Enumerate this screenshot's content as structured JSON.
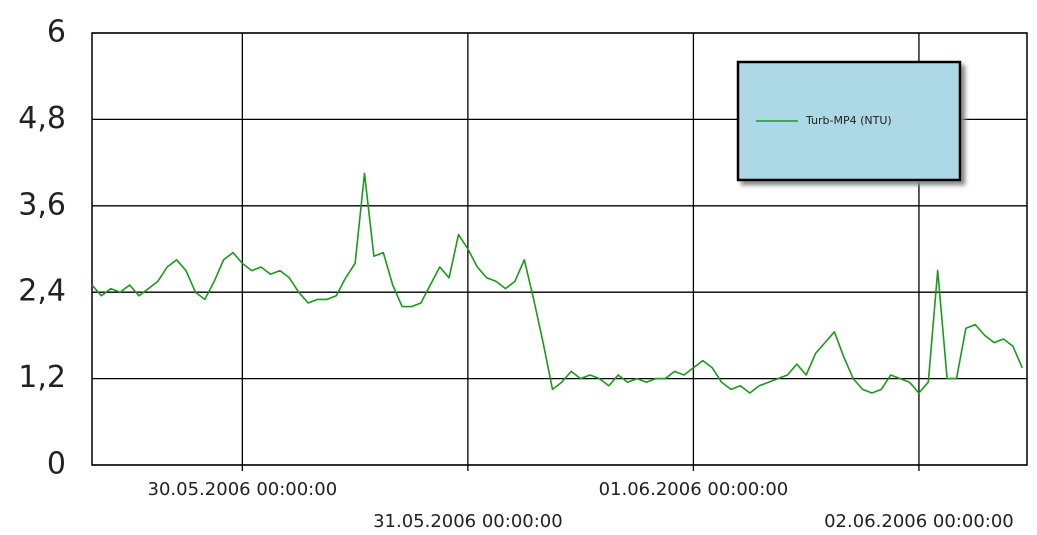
{
  "chart_data": {
    "type": "line",
    "x": [
      "29.05.2006 08:00:00",
      "29.05.2006 09:00:00",
      "29.05.2006 10:00:00",
      "29.05.2006 11:00:00",
      "29.05.2006 12:00:00",
      "29.05.2006 13:00:00",
      "29.05.2006 14:00:00",
      "29.05.2006 15:00:00",
      "29.05.2006 16:00:00",
      "29.05.2006 17:00:00",
      "29.05.2006 18:00:00",
      "29.05.2006 19:00:00",
      "29.05.2006 20:00:00",
      "29.05.2006 21:00:00",
      "29.05.2006 22:00:00",
      "29.05.2006 23:00:00",
      "30.05.2006 00:00:00",
      "30.05.2006 01:00:00",
      "30.05.2006 02:00:00",
      "30.05.2006 03:00:00",
      "30.05.2006 04:00:00",
      "30.05.2006 05:00:00",
      "30.05.2006 06:00:00",
      "30.05.2006 07:00:00",
      "30.05.2006 08:00:00",
      "30.05.2006 09:00:00",
      "30.05.2006 10:00:00",
      "30.05.2006 11:00:00",
      "30.05.2006 12:00:00",
      "30.05.2006 13:00:00",
      "30.05.2006 14:00:00",
      "30.05.2006 15:00:00",
      "30.05.2006 16:00:00",
      "30.05.2006 17:00:00",
      "30.05.2006 18:00:00",
      "30.05.2006 19:00:00",
      "30.05.2006 20:00:00",
      "30.05.2006 21:00:00",
      "30.05.2006 22:00:00",
      "30.05.2006 23:00:00",
      "31.05.2006 00:00:00",
      "31.05.2006 01:00:00",
      "31.05.2006 02:00:00",
      "31.05.2006 03:00:00",
      "31.05.2006 04:00:00",
      "31.05.2006 05:00:00",
      "31.05.2006 06:00:00",
      "31.05.2006 07:00:00",
      "31.05.2006 08:00:00",
      "31.05.2006 09:00:00",
      "31.05.2006 10:00:00",
      "31.05.2006 11:00:00",
      "31.05.2006 12:00:00",
      "31.05.2006 13:00:00",
      "31.05.2006 14:00:00",
      "31.05.2006 15:00:00",
      "31.05.2006 16:00:00",
      "31.05.2006 17:00:00",
      "31.05.2006 18:00:00",
      "31.05.2006 19:00:00",
      "31.05.2006 20:00:00",
      "31.05.2006 21:00:00",
      "31.05.2006 22:00:00",
      "31.05.2006 23:00:00",
      "01.06.2006 00:00:00",
      "01.06.2006 01:00:00",
      "01.06.2006 02:00:00",
      "01.06.2006 03:00:00",
      "01.06.2006 04:00:00",
      "01.06.2006 05:00:00",
      "01.06.2006 06:00:00",
      "01.06.2006 07:00:00",
      "01.06.2006 08:00:00",
      "01.06.2006 09:00:00",
      "01.06.2006 10:00:00",
      "01.06.2006 11:00:00",
      "01.06.2006 12:00:00",
      "01.06.2006 13:00:00",
      "01.06.2006 14:00:00",
      "01.06.2006 15:00:00",
      "01.06.2006 16:00:00",
      "01.06.2006 17:00:00",
      "01.06.2006 18:00:00",
      "01.06.2006 19:00:00",
      "01.06.2006 20:00:00",
      "01.06.2006 21:00:00",
      "01.06.2006 22:00:00",
      "01.06.2006 23:00:00",
      "02.06.2006 00:00:00",
      "02.06.2006 01:00:00",
      "02.06.2006 02:00:00",
      "02.06.2006 03:00:00",
      "02.06.2006 04:00:00",
      "02.06.2006 05:00:00",
      "02.06.2006 06:00:00",
      "02.06.2006 07:00:00",
      "02.06.2006 08:00:00",
      "02.06.2006 09:00:00",
      "02.06.2006 10:00:00",
      "02.06.2006 11:00:00"
    ],
    "series": [
      {
        "name": "Turb-MP4 (NTU)",
        "color": "#1a9a1a",
        "values": [
          2.5,
          2.35,
          2.45,
          2.4,
          2.5,
          2.35,
          2.45,
          2.55,
          2.75,
          2.85,
          2.7,
          2.4,
          2.3,
          2.55,
          2.85,
          2.95,
          2.8,
          2.7,
          2.75,
          2.65,
          2.7,
          2.6,
          2.4,
          2.25,
          2.3,
          2.3,
          2.35,
          2.6,
          2.8,
          4.05,
          2.9,
          2.95,
          2.5,
          2.2,
          2.2,
          2.25,
          2.5,
          2.75,
          2.6,
          3.2,
          3.0,
          2.75,
          2.6,
          2.55,
          2.45,
          2.55,
          2.85,
          2.3,
          1.7,
          1.05,
          1.15,
          1.3,
          1.2,
          1.25,
          1.2,
          1.1,
          1.25,
          1.15,
          1.2,
          1.15,
          1.2,
          1.2,
          1.3,
          1.25,
          1.35,
          1.45,
          1.35,
          1.15,
          1.05,
          1.1,
          1.0,
          1.1,
          1.15,
          1.2,
          1.25,
          1.4,
          1.25,
          1.55,
          1.7,
          1.85,
          1.5,
          1.2,
          1.05,
          1.0,
          1.05,
          1.25,
          1.2,
          1.15,
          1.0,
          1.15,
          2.7,
          1.2,
          1.2,
          1.9,
          1.95,
          1.8,
          1.7,
          1.75,
          1.65,
          1.35
        ]
      }
    ],
    "xlim": [
      "29.05.2006 08:00:00",
      "02.06.2006 11:30:00"
    ],
    "xticks": [
      "30.05.2006 00:00:00",
      "31.05.2006 00:00:00",
      "01.06.2006 00:00:00",
      "02.06.2006 00:00:00"
    ],
    "ylim": [
      0,
      6
    ],
    "yticks": [
      0,
      {
        "value": 1.2,
        "label": "1,2"
      },
      {
        "value": 2.4,
        "label": "2,4"
      },
      {
        "value": 3.6,
        "label": "3,6"
      },
      {
        "value": 4.8,
        "label": "4,8"
      },
      6
    ],
    "grid": true
  }
}
